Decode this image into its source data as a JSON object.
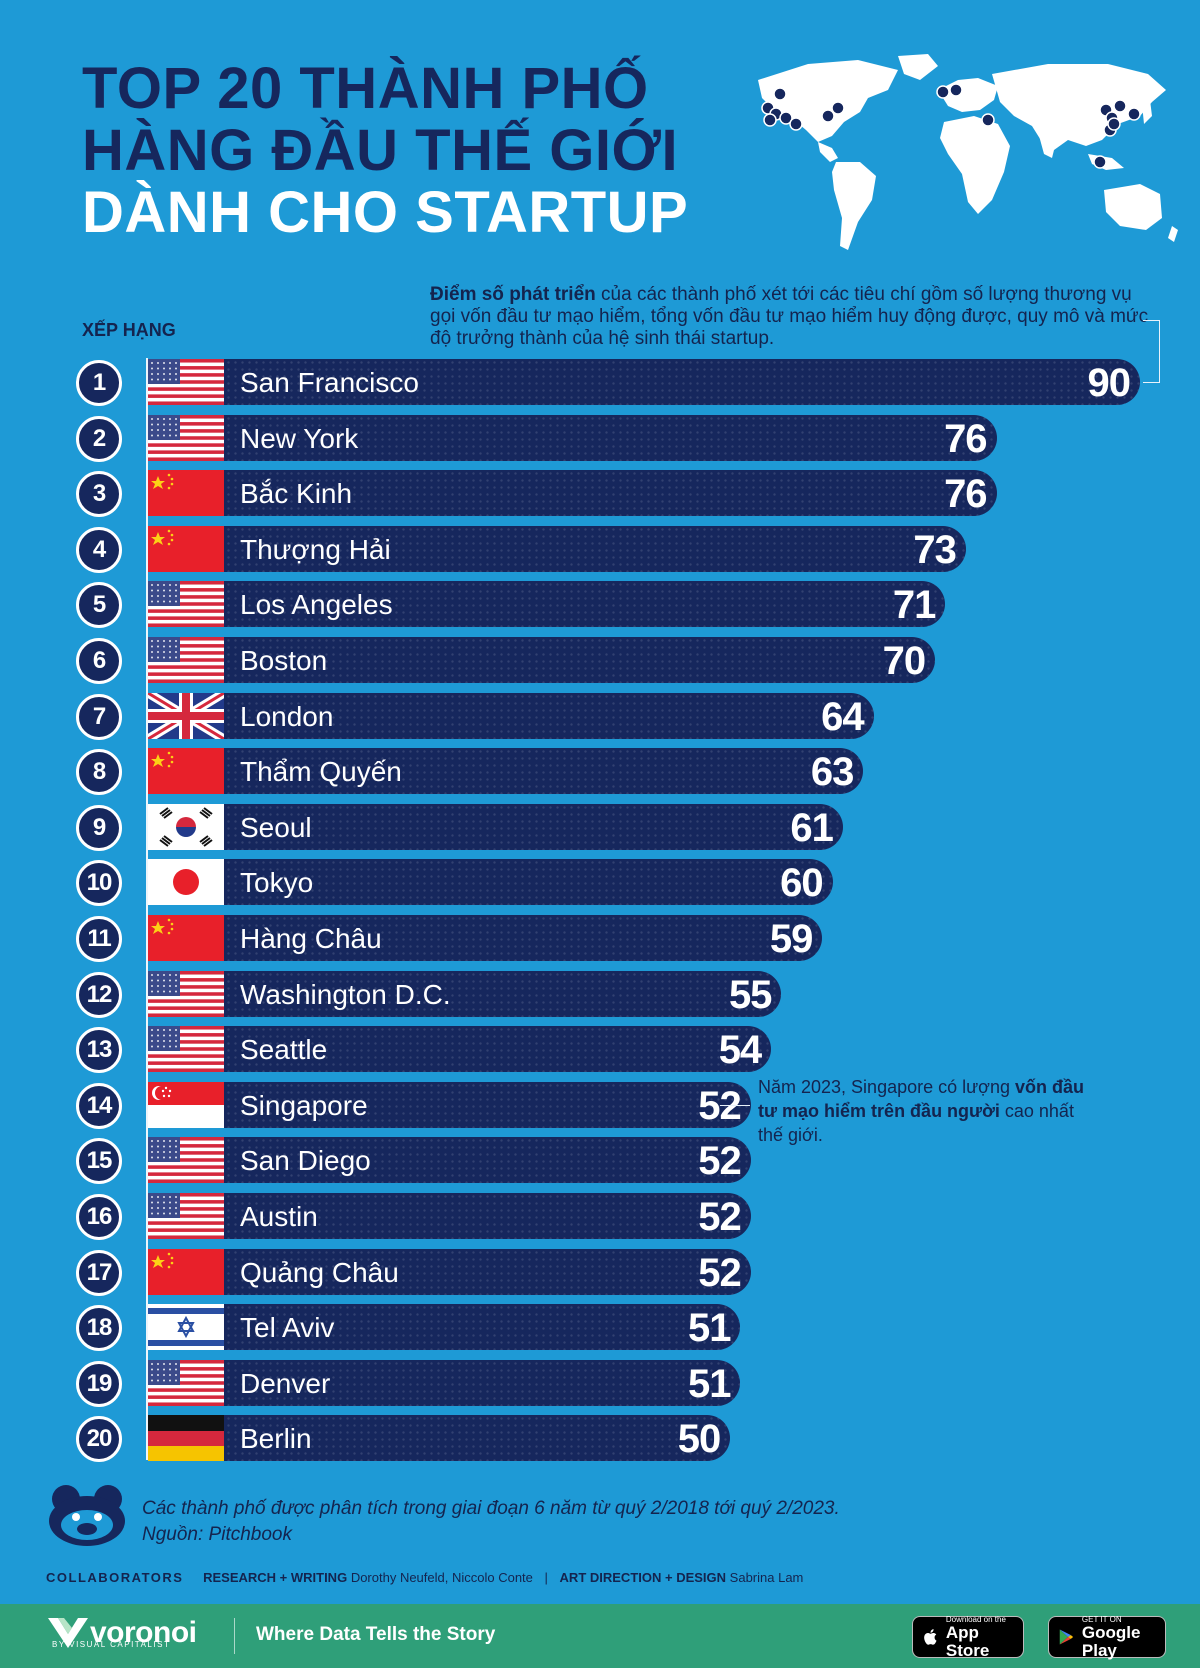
{
  "title": {
    "line1": "TOP 20 THÀNH PHỐ",
    "line2": "HÀNG ĐẦU THẾ GIỚI",
    "line3": "DÀNH CHO STARTUP"
  },
  "description": {
    "bold": "Điểm số phát triển",
    "rest": " của các thành phố xét tới các tiêu chí gồm số lượng thương vụ gọi vốn đầu tư mạo hiểm, tổng vốn đầu tư mạo hiểm huy động được, quy mô và mức độ trưởng thành của hệ sinh thái startup."
  },
  "rank_heading": "XẾP HẠNG",
  "chart_data": {
    "type": "bar",
    "orientation": "horizontal",
    "title": "TOP 20 THÀNH PHỐ HÀNG ĐẦU THẾ GIỚI DÀNH CHO STARTUP",
    "xlabel": "Điểm số phát triển",
    "ylabel": "XẾP HẠNG",
    "xlim": [
      0,
      90
    ],
    "ranks": [
      "1",
      "2",
      "3",
      "4",
      "5",
      "6",
      "7",
      "8",
      "9",
      "10",
      "11",
      "12",
      "13",
      "14",
      "15",
      "16",
      "17",
      "18",
      "19",
      "20"
    ],
    "categories": [
      "San Francisco",
      "New York",
      "Bắc Kinh",
      "Thượng Hải",
      "Los Angeles",
      "Boston",
      "London",
      "Thẩm Quyến",
      "Seoul",
      "Tokyo",
      "Hàng Châu",
      "Washington D.C.",
      "Seattle",
      "Singapore",
      "San Diego",
      "Austin",
      "Quảng Châu",
      "Tel Aviv",
      "Denver",
      "Berlin"
    ],
    "values": [
      90,
      76,
      76,
      73,
      71,
      70,
      64,
      63,
      61,
      60,
      59,
      55,
      54,
      52,
      52,
      52,
      52,
      51,
      51,
      50
    ],
    "flags": [
      "us",
      "us",
      "cn",
      "cn",
      "us",
      "us",
      "uk",
      "cn",
      "kr",
      "jp",
      "cn",
      "us",
      "us",
      "sg",
      "us",
      "us",
      "cn",
      "il",
      "us",
      "de"
    ]
  },
  "singapore_note": {
    "pre": "Năm 2023, Singapore có lượng ",
    "bold": "vốn đầu tư mạo hiểm trên đầu người",
    "post": " cao nhất thế giới."
  },
  "footnote": {
    "line1": "Các thành phố được phân tích trong giai đoạn 6 năm từ quý 2/2018 tới quý 2/2023.",
    "line2": "Nguồn: Pitchbook"
  },
  "collaborators": {
    "label": "COLLABORATORS",
    "research_label": "RESEARCH + WRITING",
    "research_names": "Dorothy Neufeld, Niccolo Conte",
    "separator": "|",
    "design_label": "ART DIRECTION + DESIGN",
    "design_names": "Sabrina Lam"
  },
  "footer": {
    "brand": "voronoi",
    "brand_sub": "BY VISUAL CAPITALIST",
    "tagline": "Where Data Tells the Story",
    "appstore_small": "Download on the",
    "appstore_big": "App Store",
    "googleplay_small": "GET IT ON",
    "googleplay_big": "Google Play"
  },
  "colors": {
    "background": "#1e9ad6",
    "bar": "#16275d",
    "accent_white": "#ffffff",
    "footer": "#2f9f79"
  }
}
